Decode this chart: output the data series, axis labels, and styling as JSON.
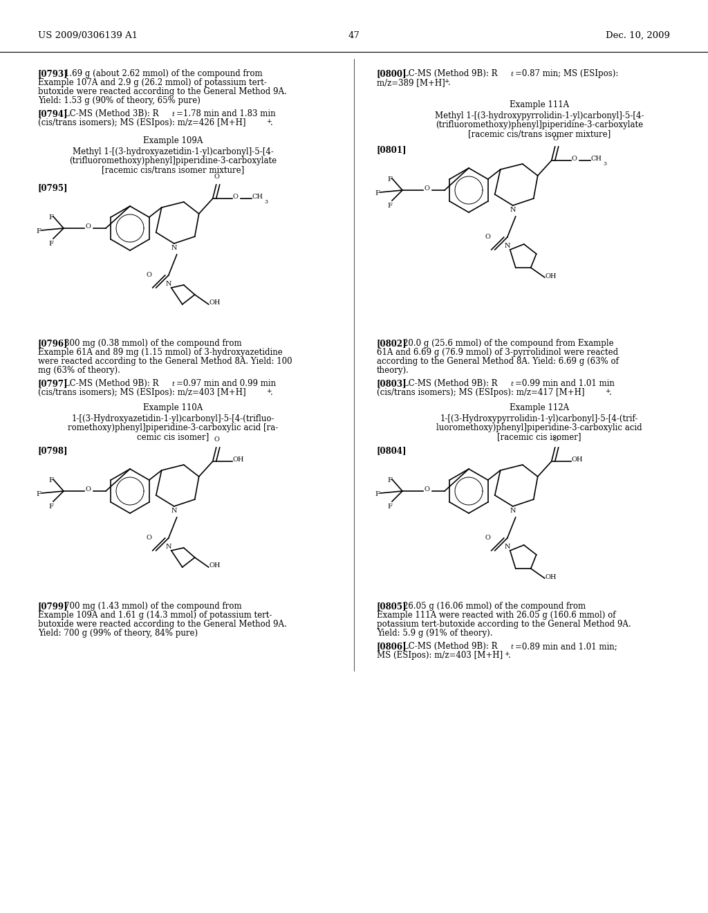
{
  "page_width": 10.24,
  "page_height": 13.2,
  "bg_color": "#ffffff",
  "header_left": "US 2009/0306139 A1",
  "header_right": "Dec. 10, 2009",
  "page_number": "47"
}
